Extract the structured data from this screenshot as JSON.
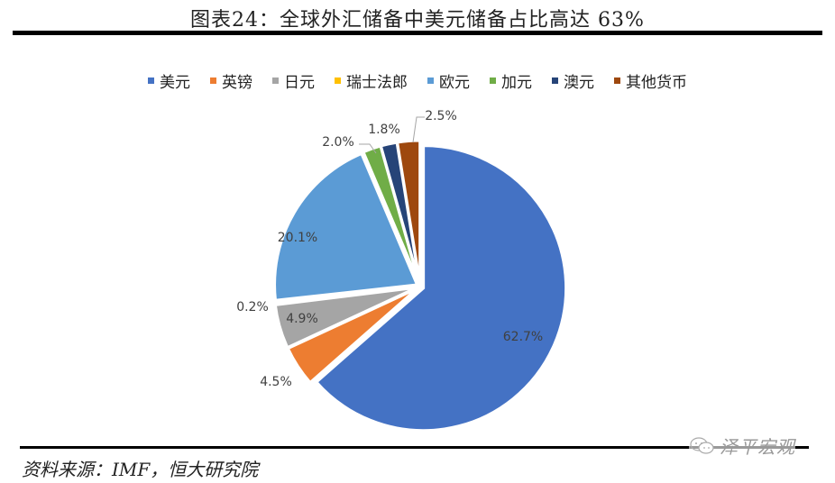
{
  "title": "图表24：全球外汇储备中美元储备占比高达 63%",
  "legend": [
    {
      "label": "美元",
      "color": "#4472C4"
    },
    {
      "label": "英镑",
      "color": "#ED7D31"
    },
    {
      "label": "日元",
      "color": "#A5A5A5"
    },
    {
      "label": "瑞士法郎",
      "color": "#FFC000"
    },
    {
      "label": "欧元",
      "color": "#5B9BD5"
    },
    {
      "label": "加元",
      "color": "#70AD47"
    },
    {
      "label": "澳元",
      "color": "#264478"
    },
    {
      "label": "其他货币",
      "color": "#9E480E"
    }
  ],
  "source": "资料来源：IMF，恒大研究院",
  "watermark": "泽平宏观",
  "chart_data": {
    "type": "pie",
    "title": "图表24：全球外汇储备中美元储备占比高达 63%",
    "categories": [
      "美元",
      "英镑",
      "日元",
      "瑞士法郎",
      "欧元",
      "加元",
      "澳元",
      "其他货币"
    ],
    "values": [
      62.7,
      4.5,
      4.9,
      0.2,
      20.1,
      2.0,
      1.8,
      2.5
    ],
    "labels": [
      "62.7%",
      "4.5%",
      "4.9%",
      "0.2%",
      "20.1%",
      "2.0%",
      "1.8%",
      "2.5%"
    ],
    "colors": [
      "#4472C4",
      "#ED7D31",
      "#A5A5A5",
      "#FFC000",
      "#5B9BD5",
      "#70AD47",
      "#264478",
      "#9E480E"
    ],
    "start_angle": "12 o'clock",
    "direction": "clockwise",
    "legend_position": "top",
    "exploded": true
  }
}
